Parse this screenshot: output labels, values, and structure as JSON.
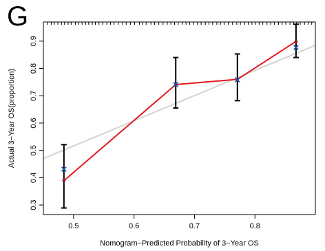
{
  "panel_label": "G",
  "chart_data": {
    "type": "scatter",
    "title": "",
    "xlabel": "Nomogram−Predicted Probability of 3−Year OS",
    "ylabel": "Actual 3−Year OS(proportion)",
    "xlim": [
      0.45,
      0.9
    ],
    "ylim": [
      0.265,
      0.97
    ],
    "xticks": [
      0.5,
      0.6,
      0.7,
      0.8
    ],
    "xtick_labels": [
      "0.5",
      "0.6",
      "0.7",
      "0.8"
    ],
    "yticks": [
      0.3,
      0.4,
      0.5,
      0.6,
      0.7,
      0.8,
      0.9
    ],
    "ytick_labels": [
      "0.3",
      "0.4",
      "0.5",
      "0.6",
      "0.7",
      "0.8",
      "0.9"
    ],
    "grid": false,
    "reference_line": {
      "x": [
        0.45,
        0.9
      ],
      "y": [
        0.47,
        0.885
      ],
      "color": "#d3d3d3"
    },
    "series": [
      {
        "x": [
          0.484,
          0.669,
          0.771,
          0.868
        ],
        "y": [
          0.389,
          0.741,
          0.76,
          0.899
        ],
        "color": "#e41a1c",
        "marker": "dot"
      },
      {
        "x": [
          0.484,
          0.669,
          0.771,
          0.868
        ],
        "y": [
          0.431,
          0.741,
          0.758,
          0.877
        ],
        "color": "#1f4fb0",
        "marker": "x"
      }
    ],
    "error_bars": [
      {
        "x": 0.484,
        "low": 0.289,
        "high": 0.521
      },
      {
        "x": 0.669,
        "low": 0.655,
        "high": 0.84
      },
      {
        "x": 0.771,
        "low": 0.682,
        "high": 0.853
      },
      {
        "x": 0.868,
        "low": 0.84,
        "high": 0.962
      }
    ],
    "rug_x": [
      0.44,
      0.449,
      0.457,
      0.463,
      0.468,
      0.474,
      0.48,
      0.485,
      0.491,
      0.496,
      0.503,
      0.508,
      0.514,
      0.52,
      0.525,
      0.531,
      0.536,
      0.542,
      0.548,
      0.555,
      0.561,
      0.567,
      0.574,
      0.581,
      0.587,
      0.594,
      0.601,
      0.609,
      0.614,
      0.62,
      0.628,
      0.634,
      0.641,
      0.648,
      0.655,
      0.661,
      0.667,
      0.673,
      0.68,
      0.686,
      0.692,
      0.698,
      0.705,
      0.711,
      0.718,
      0.724,
      0.73,
      0.737,
      0.743,
      0.749,
      0.756,
      0.763,
      0.77,
      0.776,
      0.783,
      0.789,
      0.795,
      0.801,
      0.807,
      0.813,
      0.82,
      0.826,
      0.832,
      0.839,
      0.845,
      0.851,
      0.858,
      0.864,
      0.869,
      0.875,
      0.882,
      0.888,
      0.894
    ]
  }
}
